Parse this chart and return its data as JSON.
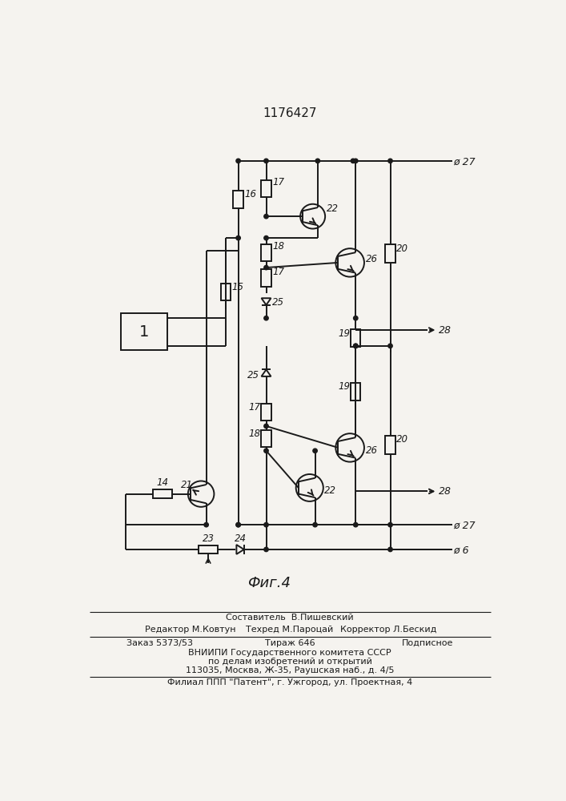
{
  "title": "1176427",
  "fig_caption": "Фиг.4",
  "bg_color": "#f5f3ef",
  "line_color": "#1a1a1a",
  "footer_line1": "Составитель  В.Пишевский",
  "footer_line2a": "Редактор М.Ковтун",
  "footer_line2b": "Техред М.Пароцай",
  "footer_line2c": "Корректор Л.Бескид",
  "footer_line3a": "Заказ 5373/53",
  "footer_line3b": "Тираж 646",
  "footer_line3c": "Подписное",
  "footer_line4": "ВНИИПИ Государственного комитета СССР",
  "footer_line5": "по делам изобретений и открытий",
  "footer_line6": "113035, Москва, Ж-35, Раушская наб., д. 4/5",
  "footer_line7": "Филиал ППП \"Патент\", г. Ужгород, ул. Проектная, 4"
}
